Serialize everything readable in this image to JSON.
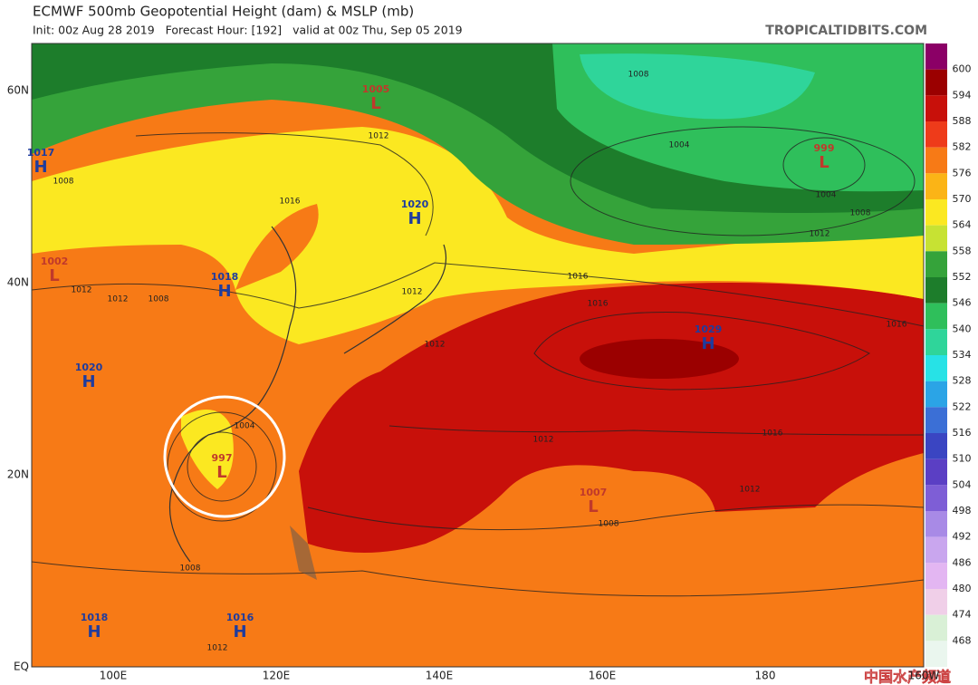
{
  "header": {
    "title": "ECMWF 500mb Geopotential Height (dam) & MSLP (mb)",
    "subtitle": "Init: 00z Aug 28 2019   Forecast Hour: [192]   valid at 00z Thu, Sep 05 2019",
    "source": "TROPICALTIDBITS.COM"
  },
  "map": {
    "lat_labels": [
      "60N",
      "40N",
      "20N",
      "EQ"
    ],
    "lon_labels": [
      "100E",
      "120E",
      "140E",
      "160E",
      "180",
      "160W"
    ],
    "centers": [
      {
        "type": "L",
        "value": "1005"
      },
      {
        "type": "H",
        "value": "1017"
      },
      {
        "type": "L",
        "value": "999"
      },
      {
        "type": "H",
        "value": "1020"
      },
      {
        "type": "L",
        "value": "1002"
      },
      {
        "type": "H",
        "value": "1018"
      },
      {
        "type": "H",
        "value": "1020"
      },
      {
        "type": "H",
        "value": "1029"
      },
      {
        "type": "L",
        "value": "997"
      },
      {
        "type": "L",
        "value": "1007"
      },
      {
        "type": "H",
        "value": "1018"
      },
      {
        "type": "H",
        "value": "1016"
      }
    ],
    "isobar_labels": [
      "1008",
      "1012",
      "1008",
      "1012",
      "1004",
      "1004",
      "1008",
      "1012",
      "1016",
      "1016",
      "1012",
      "1016",
      "1012",
      "1016",
      "1016",
      "1012",
      "1012",
      "1008",
      "1008",
      "1004",
      "1008",
      "1012",
      "1012"
    ]
  },
  "colorbar": {
    "levels": [
      {
        "label": 600,
        "color": "#9b0000"
      },
      {
        "label": 594,
        "color": "#c8100a"
      },
      {
        "label": 588,
        "color": "#ee3b1a"
      },
      {
        "label": 582,
        "color": "#f77a16"
      },
      {
        "label": 576,
        "color": "#fbb416"
      },
      {
        "label": 570,
        "color": "#fbe821"
      },
      {
        "label": 564,
        "color": "#c7e233"
      },
      {
        "label": 558,
        "color": "#35a33a"
      },
      {
        "label": 552,
        "color": "#1d7d2b"
      },
      {
        "label": 546,
        "color": "#2fbf5b"
      },
      {
        "label": 540,
        "color": "#2fd59a"
      },
      {
        "label": 534,
        "color": "#27e2e6"
      },
      {
        "label": 528,
        "color": "#2ba4e6"
      },
      {
        "label": 522,
        "color": "#3b6fd6"
      },
      {
        "label": 516,
        "color": "#3a45c2"
      },
      {
        "label": 510,
        "color": "#5b3fc4"
      },
      {
        "label": 504,
        "color": "#7e5ed6"
      },
      {
        "label": 498,
        "color": "#a88ae6"
      },
      {
        "label": 492,
        "color": "#c9a6ee"
      },
      {
        "label": 486,
        "color": "#e3b6f2"
      },
      {
        "label": 480,
        "color": "#f0cfe8"
      },
      {
        "label": 474,
        "color": "#d9f0d6"
      },
      {
        "label": 468,
        "color": "#eaf6ee"
      }
    ]
  },
  "watermark": "中国水产频道"
}
